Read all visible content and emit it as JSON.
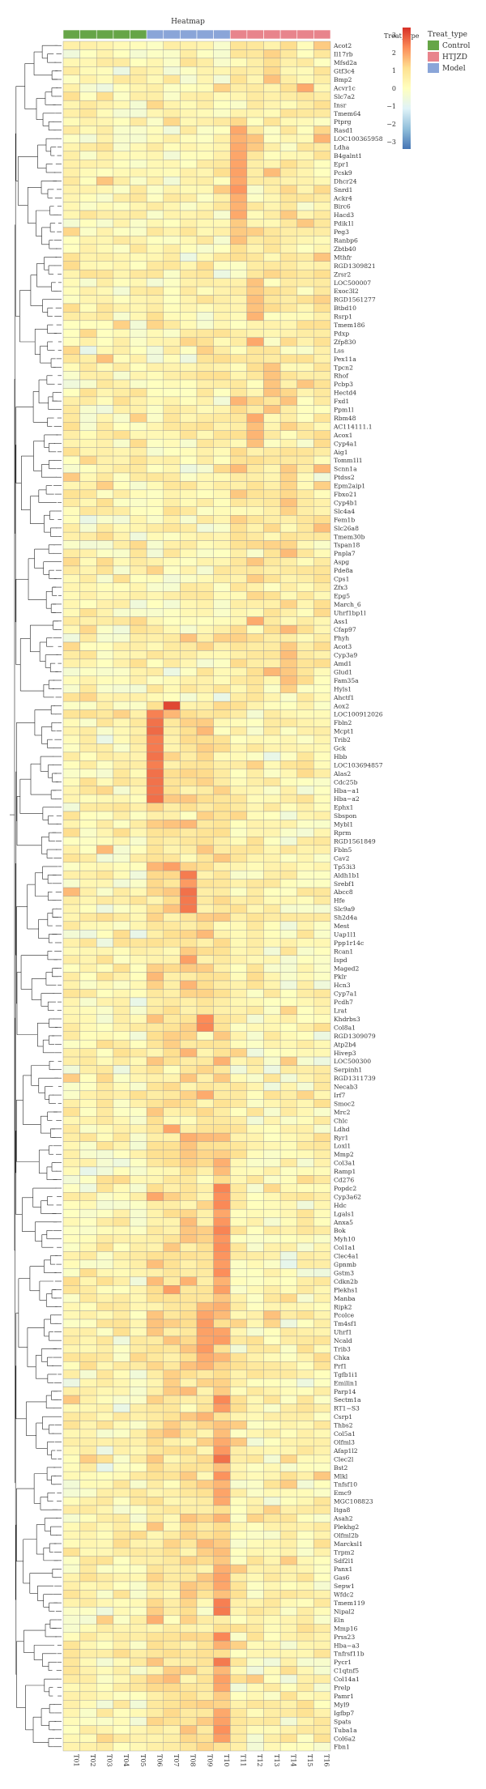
{
  "chart_data": {
    "type": "heatmap",
    "title": "Heatmap",
    "annotation_row_label": "Treat_type",
    "columns": [
      "T01",
      "T02",
      "T03",
      "T04",
      "T05",
      "T06",
      "T07",
      "T08",
      "T09",
      "T10",
      "T11",
      "T12",
      "T13",
      "T14",
      "T15",
      "T16"
    ],
    "column_groups": [
      "Control",
      "Control",
      "Control",
      "Control",
      "Control",
      "Model",
      "Model",
      "Model",
      "Model",
      "Model",
      "HTJZD",
      "HTJZD",
      "HTJZD",
      "HTJZD",
      "HTJZD",
      "HTJZD"
    ],
    "legend": {
      "title": "Treat_type",
      "entries": [
        {
          "name": "Control",
          "color": "#66a547"
        },
        {
          "name": "HTJZD",
          "color": "#e8848c"
        },
        {
          "name": "Model",
          "color": "#8aa5d8"
        }
      ]
    },
    "color_scale": {
      "ticks": [
        "3",
        "2",
        "1",
        "0",
        "−1",
        "−2",
        "−3"
      ],
      "tick_values": [
        3,
        2,
        1,
        0,
        -1,
        -2,
        -3
      ],
      "range": [
        -3.4,
        3.4
      ],
      "colors": [
        "#4575b4",
        "#91bfdb",
        "#e0f3f8",
        "#ffffbf",
        "#fee090",
        "#fc8d59",
        "#d73027"
      ]
    },
    "rows": [
      "Acot2",
      "Il17rb",
      "Mfsd2a",
      "Gtf3c4",
      "Bmp2",
      "Acvr1c",
      "Slc7a2",
      "Insr",
      "Tmem64",
      "Ptprg",
      "Rasd1",
      "LOC100365958",
      "Ldha",
      "B4galnt1",
      "Epr1",
      "Pcsk9",
      "Dhcr24",
      "Snrd1",
      "Ackr4",
      "Birc6",
      "Hacd3",
      "Pdik1l",
      "Peg3",
      "Ranbp6",
      "Zbtb40",
      "Mthfr",
      "RGD1309821",
      "Zrsr2",
      "LOC500007",
      "Exoc3l2",
      "RGD1561277",
      "Btbd10",
      "Rsrp1",
      "Tmem186",
      "Pdxp",
      "Zfp830",
      "Lss",
      "Pex11a",
      "Tpcn2",
      "Rhof",
      "Pcbp3",
      "Hectd4",
      "Fxd1",
      "Ppm1l",
      "Rbm48",
      "AC114111.1",
      "Acox1",
      "Cyp4a1",
      "Aig1",
      "Tomm1l1",
      "Scnn1a",
      "Ptdss2",
      "Epm2aip1",
      "Fbxo21",
      "Cyp4b1",
      "Slc4a4",
      "Fem1b",
      "Slc26a8",
      "Tmem30b",
      "Tspan18",
      "Pnpla7",
      "Aspg",
      "Pde8a",
      "Cps1",
      "Zfx3",
      "Epg5",
      "March_6",
      "Uhrf1bp1l",
      "Ass1",
      "Cfap97",
      "Phyh",
      "Acot3",
      "Cyp3a9",
      "Amd1",
      "Glud1",
      "Fam35a",
      "Hyls1",
      "Ahctf1",
      "Aox2",
      "LOC100912026",
      "Fbln2",
      "Mcpt1",
      "Trib2",
      "Gck",
      "Hbb",
      "LOC103694857",
      "Alas2",
      "Cdc25b",
      "Hba−a1",
      "Hba−a2",
      "Ephx1",
      "Sbspon",
      "Mybl1",
      "Rprm",
      "RGD1561849",
      "Fbln5",
      "Cav2",
      "Tp53i3",
      "Aldh1b1",
      "Srebf1",
      "Abcc8",
      "Hfe",
      "Slc9a9",
      "Sh2d4a",
      "Mest",
      "Uap1l1",
      "Ppp1r14c",
      "Rcan1",
      "Ispd",
      "Maged2",
      "Pklr",
      "Hcn3",
      "Cyp7a1",
      "Pcdh7",
      "Lrat",
      "Khdrbs3",
      "Col8a1",
      "RGD1309079",
      "Atp2b4",
      "Hivep3",
      "LOC500300",
      "Serpinh1",
      "RGD1311739",
      "Necab3",
      "Irf7",
      "Smoc2",
      "Mrc2",
      "Chlc",
      "Ldhd",
      "Ryr1",
      "Loxl1",
      "Mmp2",
      "Col3a1",
      "Ramp1",
      "Cd276",
      "Popdc2",
      "Cyp3a62",
      "Hdc",
      "Lgals1",
      "Anxa5",
      "Bok",
      "Myh10",
      "Col1a1",
      "Clec4a1",
      "Gpnmb",
      "Gstm3",
      "Cdkn2b",
      "Plekhs1",
      "Manba",
      "Ripk2",
      "Pcolce",
      "Tm4sf1",
      "Uhrf1",
      "Ncald",
      "Trib3",
      "Chka",
      "Prf1",
      "Tgfb1i1",
      "Emilin1",
      "Parp14",
      "Sectm1a",
      "RT1−S3",
      "Csrp1",
      "Thbs2",
      "Col5a1",
      "Olfml3",
      "Afap1l2",
      "Clec2l",
      "Bst2",
      "Mlkl",
      "Tnfsf10",
      "Emc9",
      "MGC108823",
      "Itga8",
      "Asah2",
      "Plekhg2",
      "Olfml2b",
      "Marcksl1",
      "Trpm2",
      "Sdf2l1",
      "Panx1",
      "Gas6",
      "Sepw1",
      "Wfdc2",
      "Tmem119",
      "Nipal2",
      "Eln",
      "Mmp16",
      "Prss23",
      "Hba−a3",
      "Tnfrsf11b",
      "Pycr1",
      "C1qtnf5",
      "Col14a1",
      "Prelp",
      "Pamr1",
      "Myl9",
      "Igfbp7",
      "Spats",
      "Tuba1a",
      "Col6a2",
      "Fbn1"
    ]
  }
}
